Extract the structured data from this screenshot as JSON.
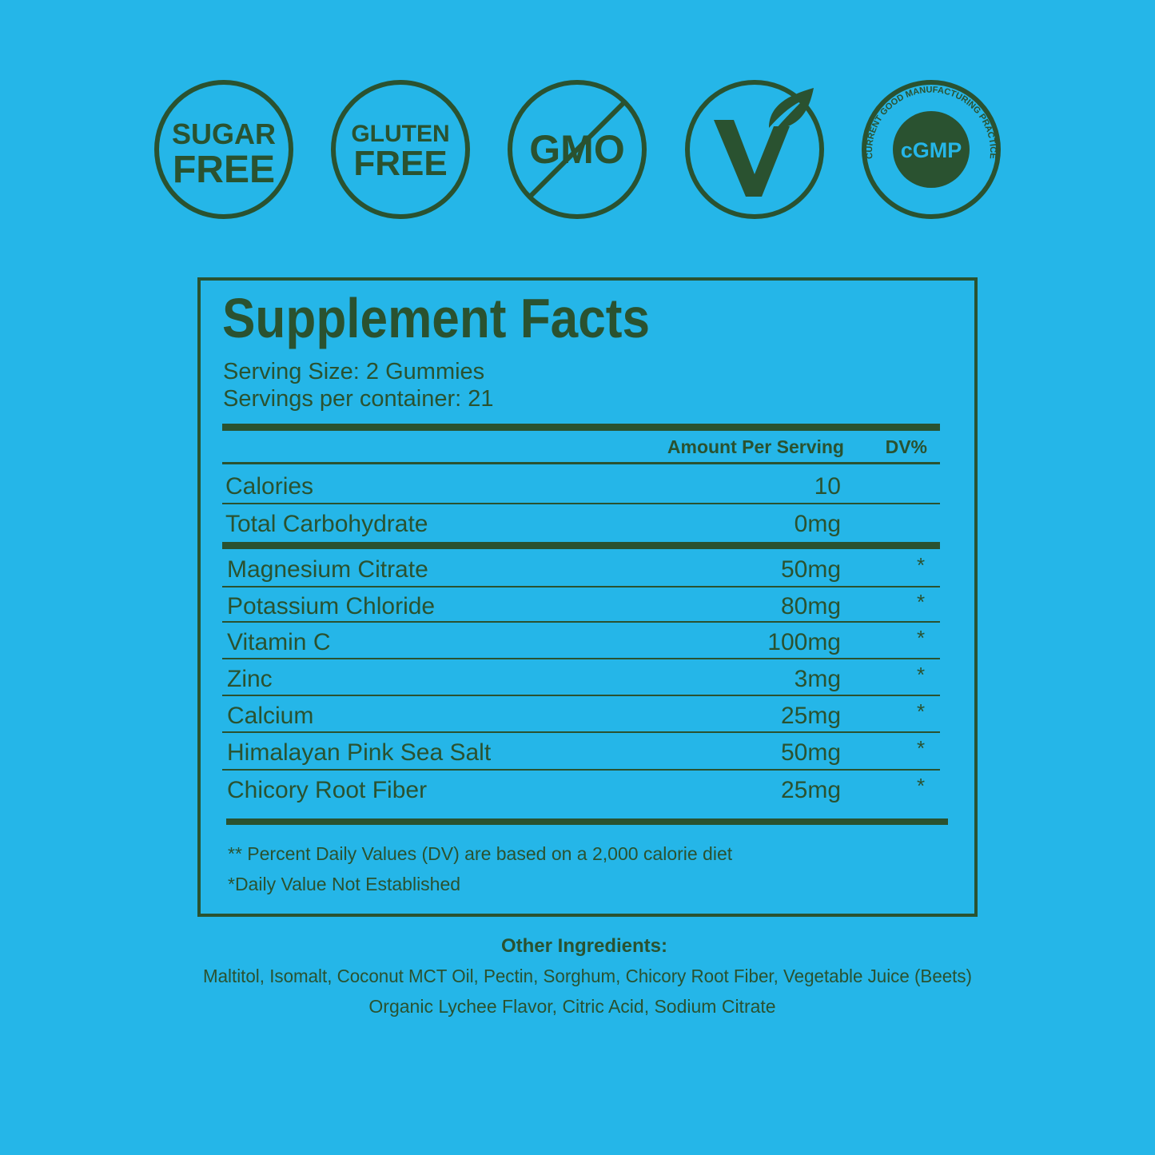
{
  "badges": {
    "sugar_free": [
      "SUGAR",
      "FREE"
    ],
    "gluten_free": [
      "GLUTEN",
      "FREE"
    ],
    "gmo": "GMO",
    "cgmp": {
      "label": "cGMP",
      "ring": "CURRENT GOOD MANUFACTURING PRACTICE"
    }
  },
  "facts": {
    "title": "Supplement Facts",
    "serving_size": "Serving Size: 2 Gummies",
    "servings": "Servings per container: 21",
    "header": {
      "amount": "Amount Per Serving",
      "dv": "DV%"
    },
    "rows": [
      {
        "name": "Calories",
        "amount": "10"
      },
      {
        "name": "Total Carbohydrate",
        "amount": "0mg"
      },
      {
        "name": "Magnesium Citrate",
        "amount": "50mg",
        "dv": "*"
      },
      {
        "name": "Potassium Chloride",
        "amount": "80mg",
        "dv": "*"
      },
      {
        "name": "Vitamin C",
        "amount": "100mg",
        "dv": "*"
      },
      {
        "name": "Zinc",
        "amount": "3mg",
        "dv": "*"
      },
      {
        "name": "Calcium",
        "amount": "25mg",
        "dv": "*"
      },
      {
        "name": "Himalayan Pink Sea Salt",
        "amount": "50mg",
        "dv": "*"
      },
      {
        "name": "Chicory Root Fiber",
        "amount": "25mg",
        "dv": "*"
      }
    ],
    "footnotes": [
      "** Percent Daily Values (DV) are based on a 2,000 calorie diet",
      "*Daily Value Not Established"
    ]
  },
  "other_ingredients": {
    "title": "Other Ingredients:",
    "lines": [
      "Maltitol, Isomalt, Coconut MCT Oil, Pectin, Sorghum, Chicory Root Fiber, Vegetable Juice (Beets)",
      "Organic Lychee Flavor, Citric Acid, Sodium Citrate"
    ]
  }
}
